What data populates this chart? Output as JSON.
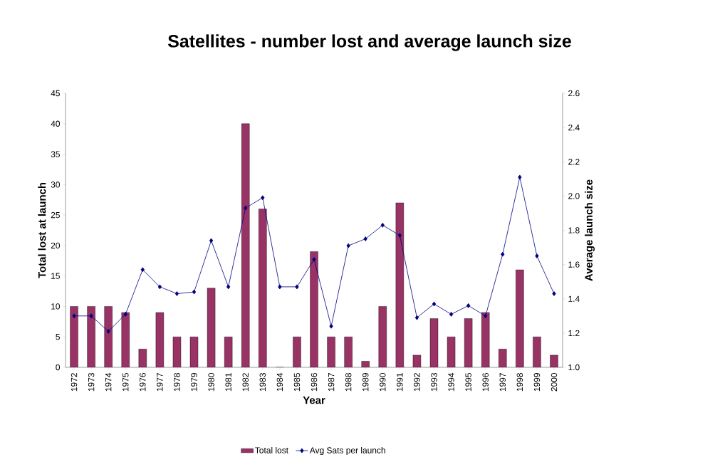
{
  "chart_data": {
    "type": "bar",
    "title": "Satellites - number lost and average launch size",
    "xlabel": "Year",
    "ylabel": "Total lost at launch",
    "y2label": "Average launch size",
    "categories": [
      "1972",
      "1973",
      "1974",
      "1975",
      "1976",
      "1977",
      "1978",
      "1979",
      "1980",
      "1981",
      "1982",
      "1983",
      "1984",
      "1985",
      "1986",
      "1987",
      "1988",
      "1989",
      "1990",
      "1991",
      "1992",
      "1993",
      "1994",
      "1995",
      "1996",
      "1997",
      "1998",
      "1999",
      "2000"
    ],
    "series": [
      {
        "name": "Total lost",
        "color": "#993366",
        "values": [
          10,
          10,
          10,
          9,
          3,
          9,
          5,
          5,
          13,
          5,
          40,
          26,
          0,
          5,
          19,
          5,
          5,
          1,
          10,
          27,
          2,
          8,
          5,
          8,
          9,
          3,
          16,
          5,
          2
        ]
      },
      {
        "name": "Avg Sats per launch",
        "type": "line",
        "axis": "y2",
        "color": "#000080",
        "marker": "diamond",
        "values": [
          1.3,
          1.3,
          1.21,
          1.31,
          1.57,
          1.47,
          1.43,
          1.44,
          1.74,
          1.47,
          1.93,
          1.99,
          1.47,
          1.47,
          1.63,
          1.24,
          1.71,
          1.75,
          1.83,
          1.77,
          1.29,
          1.37,
          1.31,
          1.36,
          1.3,
          1.66,
          2.11,
          1.65,
          1.43
        ]
      }
    ],
    "ylim": [
      0,
      45
    ],
    "yticks": [
      0,
      5,
      10,
      15,
      20,
      25,
      30,
      35,
      40,
      45
    ],
    "y2lim": [
      1.0,
      2.6
    ],
    "y2ticks": [
      {
        "value": 1.0,
        "label": "1.0"
      },
      {
        "value": 1.2,
        "label": "1.2"
      },
      {
        "value": 1.4,
        "label": "1.4"
      },
      {
        "value": 1.6,
        "label": "1.6"
      },
      {
        "value": 1.8,
        "label": "1.8"
      },
      {
        "value": 2.0,
        "label": "2.0"
      },
      {
        "value": 2.2,
        "label": "2.2"
      },
      {
        "value": 2.4,
        "label": "2.4"
      },
      {
        "value": 2.6,
        "label": "2.6"
      }
    ],
    "legend": "bottom",
    "grid": false
  }
}
